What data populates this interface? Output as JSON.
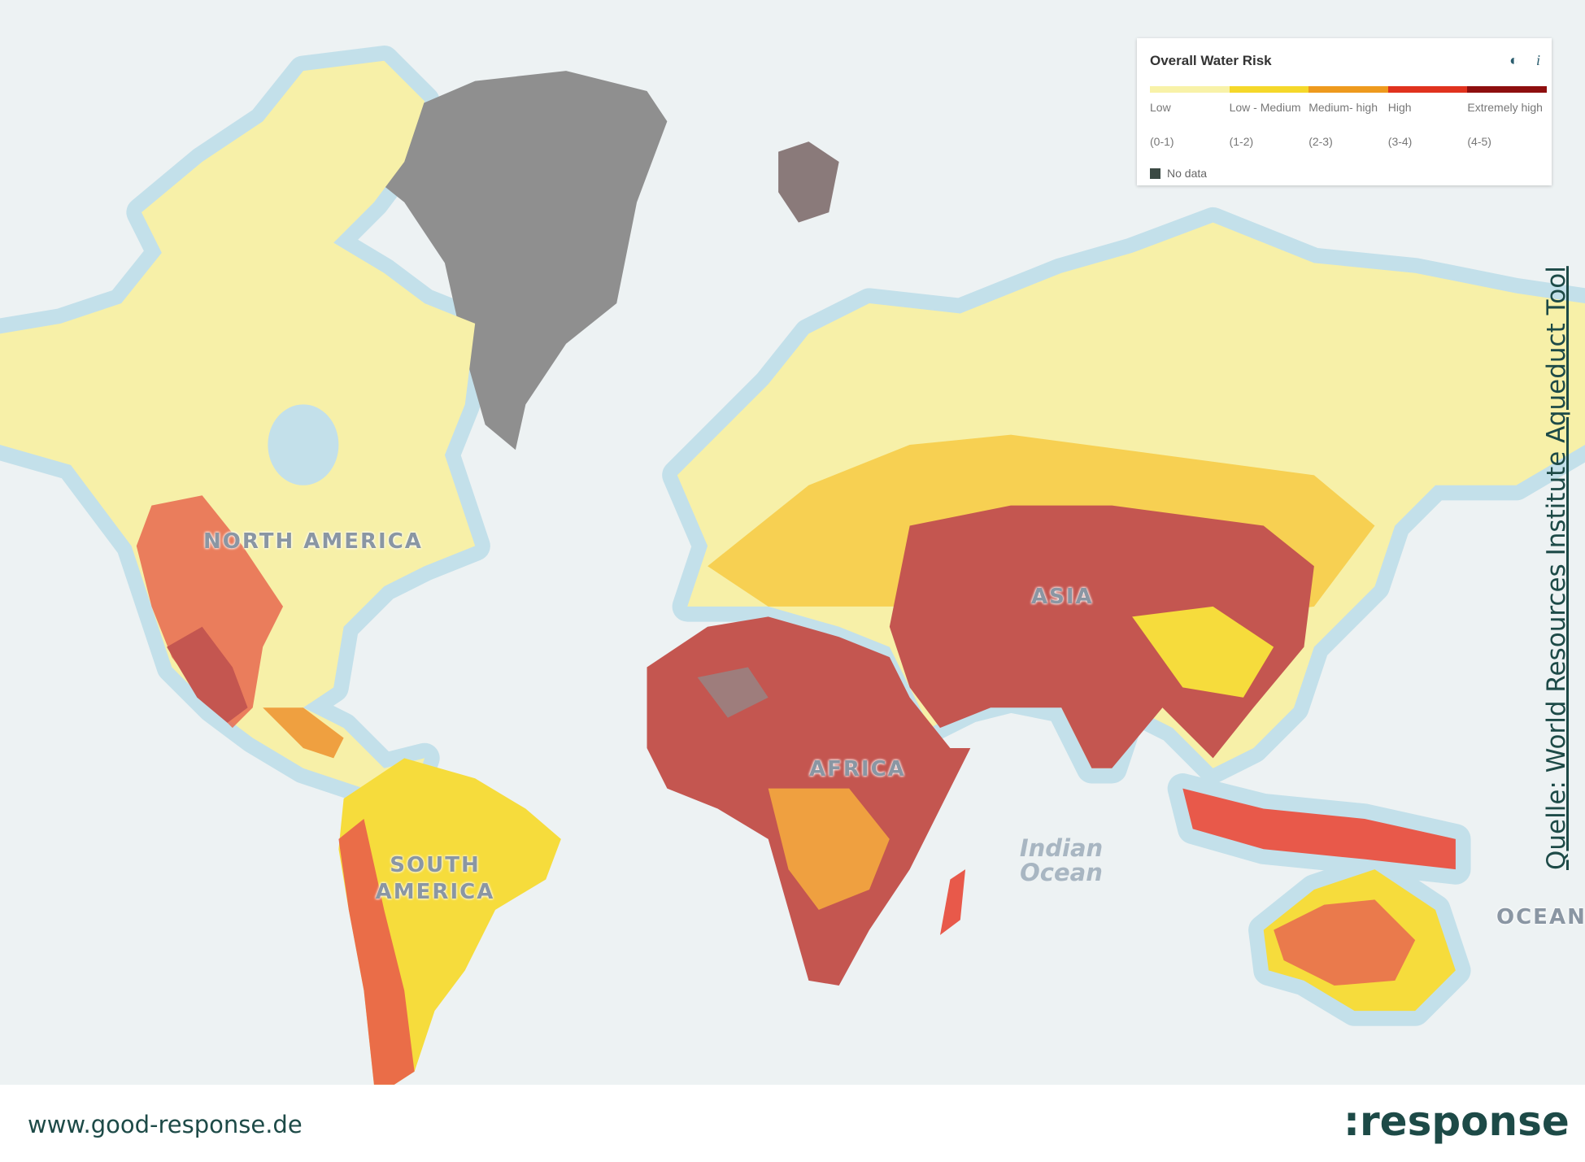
{
  "map": {
    "labels": {
      "north_america": "NORTH AMERICA",
      "south_america": "SOUTH AMERICA",
      "africa": "AFRICA",
      "asia": "ASIA",
      "indian_ocean": "Indian Ocean",
      "ocean": "OCEAN"
    },
    "colors": {
      "ocean": "#edf2f3",
      "coastal_water": "#bfdde8",
      "low": "#f7f0a8",
      "low_medium": "#f6dc3c",
      "medium_high": "#efa040",
      "high": "#e8594a",
      "extremely_high": "#c45650",
      "no_data": "#8f8f8f"
    }
  },
  "legend": {
    "title": "Overall Water Risk",
    "icons": [
      "opacity-icon",
      "info-icon"
    ],
    "info_glyph": "i",
    "categories": [
      {
        "name": "Low",
        "range": "(0-1)",
        "color": "#f8f2a8"
      },
      {
        "name": "Low - Medium",
        "range": "(1-2)",
        "color": "#f5d82a"
      },
      {
        "name": "Medium- high",
        "range": "(2-3)",
        "color": "#ee9a1e"
      },
      {
        "name": "High",
        "range": "(3-4)",
        "color": "#e0321e"
      },
      {
        "name": "Extremely high",
        "range": "(4-5)",
        "color": "#8e0f0f"
      }
    ],
    "no_data": "No data"
  },
  "source": "Quelle: World Resources Institute Aqueduct Tool",
  "footer": {
    "url": "www.good-response.de",
    "logo": ":response"
  }
}
